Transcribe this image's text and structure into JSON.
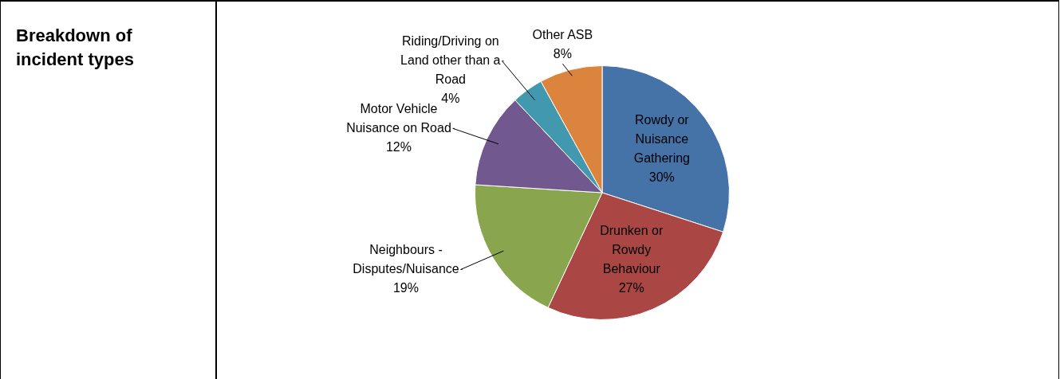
{
  "chart_data": {
    "type": "pie",
    "title": "Breakdown of incident types",
    "categories": [
      "Rowdy or Nuisance Gathering",
      "Drunken or Rowdy Behaviour",
      "Neighbours - Disputes/Nuisance",
      "Motor Vehicle Nuisance on Road",
      "Riding/Driving on Land other than a Road",
      "Other ASB"
    ],
    "values": [
      30,
      27,
      19,
      12,
      4,
      8
    ],
    "value_labels": [
      "30%",
      "27%",
      "19%",
      "12%",
      "4%",
      "8%"
    ],
    "colors": [
      "#4572a7",
      "#aa4643",
      "#89a54e",
      "#71588f",
      "#4198af",
      "#db843d"
    ],
    "legend": false
  }
}
